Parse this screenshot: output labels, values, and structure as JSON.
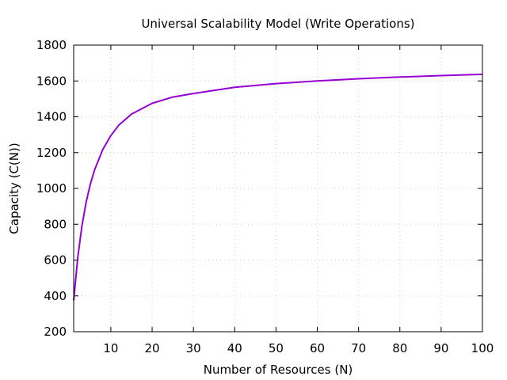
{
  "chart_data": {
    "type": "line",
    "title": "Universal Scalability Model (Write Operations)",
    "xlabel": "Number of Resources (N)",
    "ylabel": "Capacity (C(N))",
    "xlim": [
      1,
      100
    ],
    "ylim": [
      200,
      1800
    ],
    "x_ticks": [
      10,
      20,
      30,
      40,
      50,
      60,
      70,
      80,
      90,
      100
    ],
    "y_ticks": [
      200,
      400,
      600,
      800,
      1000,
      1200,
      1400,
      1600,
      1800
    ],
    "grid": true,
    "series": [
      {
        "color": "#9400d3",
        "x": [
          1,
          2,
          3,
          4,
          5,
          6,
          8,
          10,
          12,
          15,
          20,
          25,
          30,
          40,
          50,
          60,
          70,
          80,
          90,
          100
        ],
        "y": [
          375,
          615,
          790,
          920,
          1020,
          1100,
          1215,
          1295,
          1355,
          1415,
          1475,
          1510,
          1530,
          1565,
          1585,
          1600,
          1612,
          1622,
          1630,
          1637
        ]
      }
    ]
  }
}
